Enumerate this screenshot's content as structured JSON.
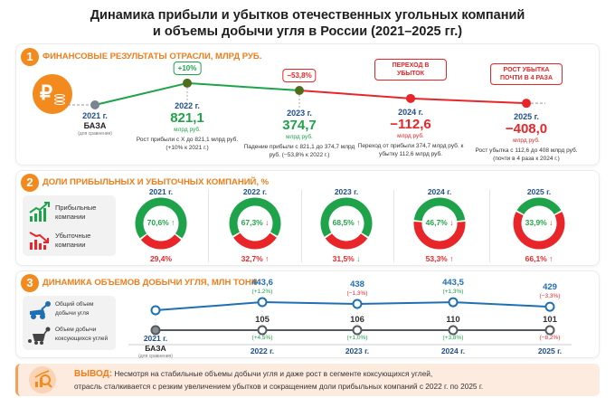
{
  "title": {
    "line1": "Динамика прибыли и убытков отечественных угольных компаний",
    "line2": "и объемы добычи угля в России (2021–2025 гг.)"
  },
  "colors": {
    "accent": "#f28a1e",
    "profit": "#1fa34a",
    "loss": "#e8262a",
    "year": "#1f4e8c",
    "production": "#1f6fb3",
    "coking": "#555a60"
  },
  "section1": {
    "number": "1",
    "title": "ФИНАНСОВЫЕ РЕЗУЛЬТАТЫ ОТРАСЛИ, МЛРД РУБ.",
    "icon": "ruble-coins-icon",
    "points": [
      {
        "year": "2021 г.",
        "value": "БАЗА",
        "unit": "(для сравнения)",
        "note": "",
        "value_num": null
      },
      {
        "year": "2022 г.",
        "value": "821,1",
        "unit": "млрд руб.",
        "note": "Рост прибыли с Х до 821,1 млрд руб. (+10% к 2021 г.)",
        "value_num": 821.1,
        "callout": "+10%"
      },
      {
        "year": "2023 г.",
        "value": "374,7",
        "unit": "млрд руб.",
        "note": "Падение прибыли с 821,1 до 374,7 млрд руб. (−53,8% к 2022 г.)",
        "value_num": 374.7,
        "callout": "−53,8%"
      },
      {
        "year": "2024 г.",
        "value": "−112,6",
        "unit": "млрд руб.",
        "note": "Переход от прибыли 374,7 млрд руб. к убытку 112,6 млрд руб.",
        "value_num": -112.6,
        "callout": "ПЕРЕХОД В УБЫТОК"
      },
      {
        "year": "2025 г.",
        "value": "−408,0",
        "unit": "млрд руб.",
        "note": "Рост убытка с 112,6 до 408 млрд руб. (почти в 4 раза к 2024 г.)",
        "value_num": -408.0,
        "callout": "РОСТ УБЫТКА ПОЧТИ В 4 РАЗА"
      }
    ]
  },
  "section2": {
    "number": "2",
    "title": "ДОЛИ ПРИБЫЛЬНЫХ И УБЫТОЧНЫХ КОМПАНИЙ, %",
    "legend": {
      "profit": "Прибыльные компании",
      "loss": "Убыточные компании"
    },
    "years": [
      {
        "year": "2021 г.",
        "profit": 70.6,
        "profit_label": "70,6%",
        "profit_trend": "up",
        "loss_label": "29,4%",
        "loss_trend": ""
      },
      {
        "year": "2022 г.",
        "profit": 67.3,
        "profit_label": "67,3%",
        "profit_trend": "down",
        "loss_label": "32,7%",
        "loss_trend": "up"
      },
      {
        "year": "2023 г.",
        "profit": 68.5,
        "profit_label": "68,5%",
        "profit_trend": "up",
        "loss_label": "31,5%",
        "loss_trend": "down"
      },
      {
        "year": "2024 г.",
        "profit": 46.7,
        "profit_label": "46,7%",
        "profit_trend": "down",
        "loss_label": "53,3%",
        "loss_trend": "up"
      },
      {
        "year": "2025 г.",
        "profit": 33.9,
        "profit_label": "33,9%",
        "profit_trend": "down",
        "loss_label": "66,1%",
        "loss_trend": "up"
      }
    ]
  },
  "section3": {
    "number": "3",
    "title": "ДИНАМИКА ОБЪЕМОВ ДОБЫЧИ УГЛЯ, МЛН ТОНН",
    "legend": {
      "total": "Общий объем добычи угля",
      "coking": "Объем добычи коксующихся углей"
    },
    "base_label": "БАЗА",
    "base_note": "(для сравнения)",
    "years": [
      {
        "year": "2021 г.",
        "total": null,
        "total_label": "",
        "total_change": "",
        "coking": null,
        "coking_label": "",
        "coking_change": ""
      },
      {
        "year": "2022 г.",
        "total": 443.6,
        "total_label": "443,6",
        "total_change": "(+1,2%)",
        "coking": 105,
        "coking_label": "105",
        "coking_change": "(+4,5%)"
      },
      {
        "year": "2023 г.",
        "total": 438,
        "total_label": "438",
        "total_change": "(−1,3%)",
        "coking": 106,
        "coking_label": "106",
        "coking_change": "(+1,0%)"
      },
      {
        "year": "2024 г.",
        "total": 443.5,
        "total_label": "443,5",
        "total_change": "(+1,3%)",
        "coking": 110,
        "coking_label": "110",
        "coking_change": "(+3,8%)"
      },
      {
        "year": "2025 г.",
        "total": 429,
        "total_label": "429",
        "total_change": "(−3,3%)",
        "coking": 101,
        "coking_label": "101",
        "coking_change": "(−8,2%)"
      }
    ]
  },
  "conclusion": {
    "label": "ВЫВОД:",
    "line1": "Несмотря на стабильные объемы добычи угля и даже рост в сегменте коксующихся углей,",
    "line2": "отрасль сталкивается с резким увеличением убытков и сокращением доли прибыльных компаний с 2022 г. по 2025 г."
  }
}
